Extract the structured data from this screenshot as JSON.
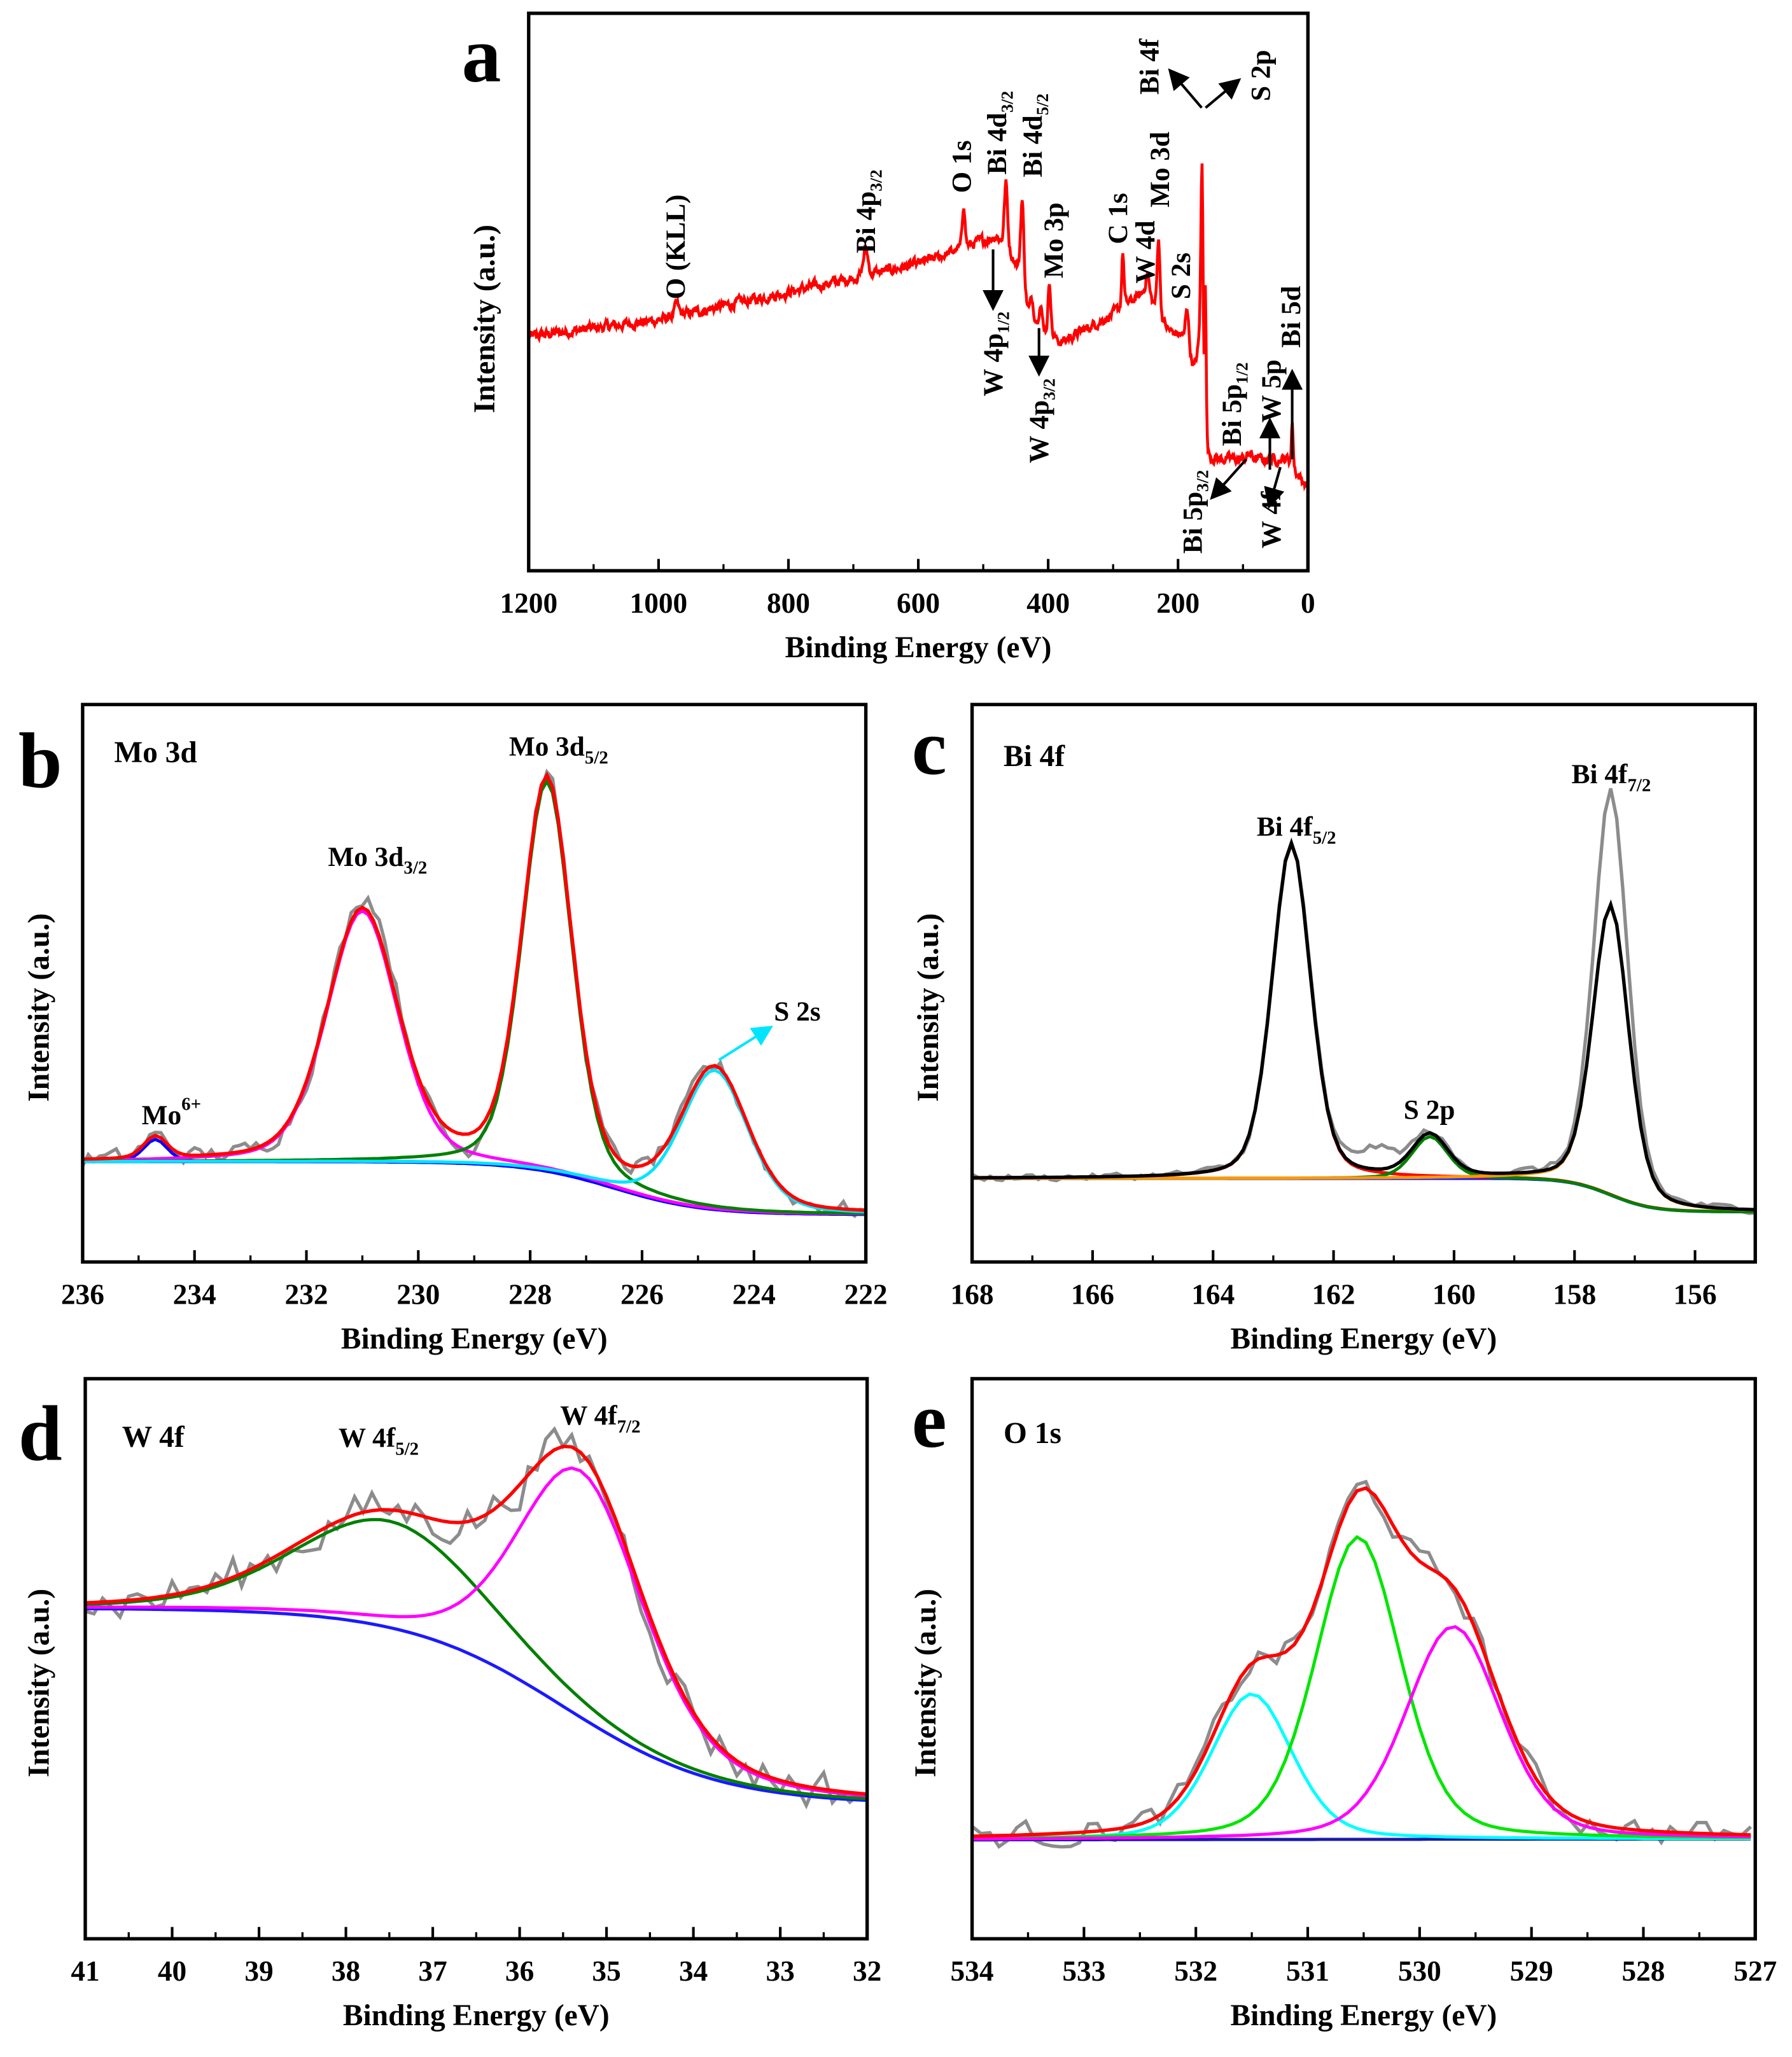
{
  "chart_data": [
    {
      "panel": "a",
      "type": "line",
      "title": "",
      "xlabel": "Binding Energy (eV)",
      "ylabel": "Intensity (a.u.)",
      "xlim": [
        1200,
        0
      ],
      "ylim": [
        0,
        1
      ],
      "xticks": [
        1200,
        1000,
        800,
        600,
        400,
        200,
        0
      ],
      "color": "#ff0000",
      "noise": 0.007,
      "step": 1,
      "background": {
        "points": [
          [
            1200,
            0.42
          ],
          [
            1000,
            0.45
          ],
          [
            800,
            0.5
          ],
          [
            600,
            0.55
          ],
          [
            480,
            0.6
          ],
          [
            450,
            0.55
          ],
          [
            430,
            0.46
          ],
          [
            400,
            0.42
          ],
          [
            380,
            0.41
          ],
          [
            300,
            0.46
          ],
          [
            250,
            0.5
          ],
          [
            215,
            0.43
          ],
          [
            195,
            0.42
          ],
          [
            175,
            0.36
          ],
          [
            166,
            0.4
          ],
          [
            160,
            0.2
          ],
          [
            30,
            0.2
          ],
          [
            15,
            0.17
          ],
          [
            0,
            0.15
          ]
        ]
      },
      "peaks": [
        [
          972,
          0.02,
          8
        ],
        [
          681,
          0.05,
          8
        ],
        [
          530,
          0.08,
          5
        ],
        [
          465,
          0.12,
          6
        ],
        [
          440,
          0.16,
          6
        ],
        [
          425,
          0.03,
          6
        ],
        [
          412,
          0.04,
          6
        ],
        [
          398,
          0.1,
          5
        ],
        [
          285,
          0.1,
          4
        ],
        [
          247,
          0.04,
          6
        ],
        [
          230,
          0.14,
          5
        ],
        [
          186,
          0.08,
          6
        ],
        [
          163,
          0.42,
          4
        ],
        [
          158,
          0.3,
          3
        ],
        [
          90,
          0.01,
          8
        ],
        [
          24,
          0.08,
          3
        ]
      ],
      "annotations": [
        {
          "main": "O (KLL)",
          "sub": ""
        },
        {
          "main": "Bi 4p",
          "sub": "3/2"
        },
        {
          "main": "O 1s",
          "sub": ""
        },
        {
          "main": "Bi 4d",
          "sub": "3/2"
        },
        {
          "main": "Bi 4d",
          "sub": "5/2"
        },
        {
          "main": "Mo 3p",
          "sub": ""
        },
        {
          "main": "C 1s",
          "sub": ""
        },
        {
          "main": "W 4d",
          "sub": ""
        },
        {
          "main": "Mo 3d",
          "sub": ""
        },
        {
          "main": "S 2s",
          "sub": ""
        },
        {
          "main": "Bi 4f",
          "sub": ""
        },
        {
          "main": "S 2p",
          "sub": ""
        },
        {
          "main": "W 4p",
          "sub": "1/2"
        },
        {
          "main": "W 4p",
          "sub": "3/2"
        },
        {
          "main": "Bi 5p",
          "sub": "1/2"
        },
        {
          "main": "Bi 5p",
          "sub": "3/2"
        },
        {
          "main": "W 5p",
          "sub": ""
        },
        {
          "main": "W 4f",
          "sub": ""
        },
        {
          "main": "Bi 5d",
          "sub": ""
        }
      ]
    },
    {
      "panel": "b",
      "type": "line",
      "title": "Mo 3d",
      "xlabel": "Binding Energy (eV)",
      "ylabel": "Intensity (a.u.)",
      "xlim": [
        236,
        222
      ],
      "ylim": [
        0,
        1
      ],
      "xticks": [
        236,
        234,
        232,
        230,
        228,
        226,
        224,
        222
      ],
      "envelope_color": "#ff0000",
      "raw_color": "#8c8c8c",
      "noise": 0.014,
      "step": 0.1,
      "background": {
        "left": 0.18,
        "right": 0.085,
        "center": 226.5,
        "width": 0.8,
        "color": "#1a1aff"
      },
      "components": [
        {
          "center": 234.7,
          "height": 0.04,
          "fwhm": 0.5,
          "color": "#0000ff"
        },
        {
          "center": 231.0,
          "height": 0.45,
          "fwhm": 1.5,
          "color": "#ff00ff"
        },
        {
          "center": 227.7,
          "height": 0.7,
          "fwhm": 1.05,
          "color": "#008000"
        },
        {
          "center": 224.7,
          "height": 0.25,
          "fwhm": 1.4,
          "color": "#00e5ff"
        }
      ],
      "raw_extra": [
        [
          230.7,
          0.03,
          0.8
        ],
        [
          229.2,
          -0.03,
          0.6
        ]
      ],
      "annotations": [
        {
          "main": "Mo 3d",
          "sub": "3/2",
          "sup": ""
        },
        {
          "main": "Mo 3d",
          "sub": "5/2",
          "sup": ""
        },
        {
          "main": "S 2s",
          "sub": "",
          "sup": ""
        },
        {
          "main": "Mo",
          "sub": "",
          "sup": "6+"
        }
      ]
    },
    {
      "panel": "c",
      "type": "line",
      "title": "Bi 4f",
      "xlabel": "Binding Energy (eV)",
      "ylabel": "Intensity (a.u.)",
      "xlim": [
        168,
        155
      ],
      "ylim": [
        0,
        1
      ],
      "xticks": [
        168,
        166,
        164,
        162,
        160,
        158,
        156
      ],
      "envelope_color": "#000000",
      "raw_color": "#8c8c8c",
      "noise": 0.006,
      "step": 0.1,
      "background": {
        "left": 0.15,
        "right": 0.09,
        "center": 157.4,
        "width": 0.35,
        "color": "#1a1aff"
      },
      "components": [
        {
          "center": 162.7,
          "height": 0.6,
          "fwhm": 0.75,
          "color": "#ff0000"
        },
        {
          "center": 160.4,
          "height": 0.075,
          "fwhm": 0.7,
          "color": "#008000"
        },
        {
          "center": 157.4,
          "height": 0.52,
          "fwhm": 0.7,
          "color": "#ff9900"
        }
      ],
      "raw_extra": [
        [
          157.4,
          0.2,
          0.6
        ],
        [
          161.3,
          0.04,
          0.8
        ]
      ],
      "annotations": [
        {
          "main": "Bi 4f",
          "sub": "5/2",
          "sup": ""
        },
        {
          "main": "Bi 4f",
          "sub": "7/2",
          "sup": ""
        },
        {
          "main": "S 2p",
          "sub": "",
          "sup": ""
        }
      ]
    },
    {
      "panel": "d",
      "type": "line",
      "title": "W 4f",
      "xlabel": "Binding Energy (eV)",
      "ylabel": "Intensity (a.u.)",
      "xlim": [
        41,
        32
      ],
      "ylim": [
        0,
        1
      ],
      "xticks": [
        41,
        40,
        39,
        38,
        37,
        36,
        35,
        34,
        33,
        32
      ],
      "envelope_color": "#ff0000",
      "raw_color": "#8c8c8c",
      "noise": 0.035,
      "step": 0.1,
      "background": {
        "left": 0.59,
        "right": 0.24,
        "center": 35.5,
        "width": 0.9,
        "color": "#1a1aff"
      },
      "components": [
        {
          "center": 37.5,
          "height": 0.19,
          "fwhm": 2.6,
          "color": "#008000"
        },
        {
          "center": 35.3,
          "height": 0.44,
          "fwhm": 1.7,
          "color": "#ff00ff"
        }
      ],
      "raw_extra": [],
      "annotations": [
        {
          "main": "W 4f",
          "sub": "5/2",
          "sup": ""
        },
        {
          "main": "W 4f",
          "sub": "7/2",
          "sup": ""
        }
      ]
    },
    {
      "panel": "e",
      "type": "line",
      "title": "O 1s",
      "xlabel": "Binding Energy (eV)",
      "ylabel": "Intensity (a.u.)",
      "xlim": [
        534,
        527
      ],
      "ylim": [
        0,
        1
      ],
      "xticks": [
        534,
        533,
        532,
        531,
        530,
        529,
        528,
        527
      ],
      "envelope_color": "#ff0000",
      "raw_color": "#8c8c8c",
      "noise": 0.022,
      "step": 0.08,
      "background": {
        "left": 0.175,
        "right": 0.18,
        "center": 530.5,
        "width": 5,
        "color": "#1a1aaa"
      },
      "components": [
        {
          "center": 531.5,
          "height": 0.26,
          "fwhm": 0.85,
          "color": "#00ffff"
        },
        {
          "center": 530.55,
          "height": 0.54,
          "fwhm": 0.9,
          "color": "#00e600"
        },
        {
          "center": 529.7,
          "height": 0.38,
          "fwhm": 1.0,
          "color": "#ff00ff"
        }
      ],
      "raw_extra": [],
      "annotations": []
    }
  ]
}
